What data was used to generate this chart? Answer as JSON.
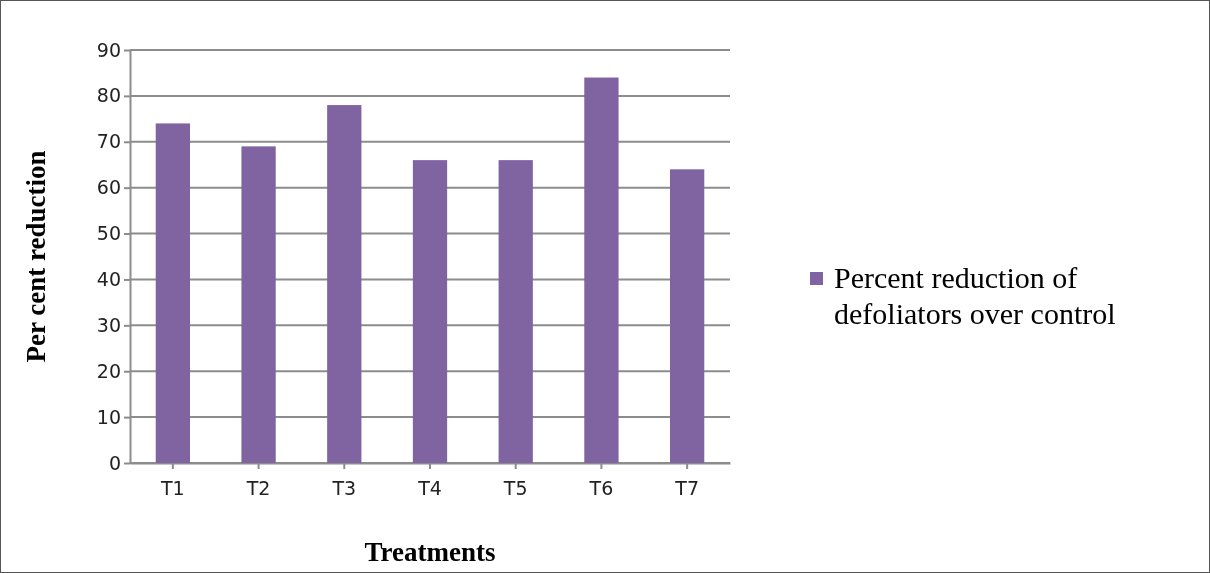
{
  "chart_data": {
    "type": "bar",
    "xlabel": "Treatments",
    "ylabel": "Per cent reduction",
    "categories": [
      "T1",
      "T2",
      "T3",
      "T4",
      "T5",
      "T6",
      "T7"
    ],
    "series": [
      {
        "name": "Percent reduction of defoliators over control",
        "color": "#8064a2",
        "values": [
          74,
          69,
          78,
          66,
          66,
          84,
          64
        ]
      }
    ],
    "ylim": [
      0,
      90
    ],
    "yticks": [
      0,
      10,
      20,
      30,
      40,
      50,
      60,
      70,
      80,
      90
    ],
    "grid": "y",
    "legend": "right"
  }
}
